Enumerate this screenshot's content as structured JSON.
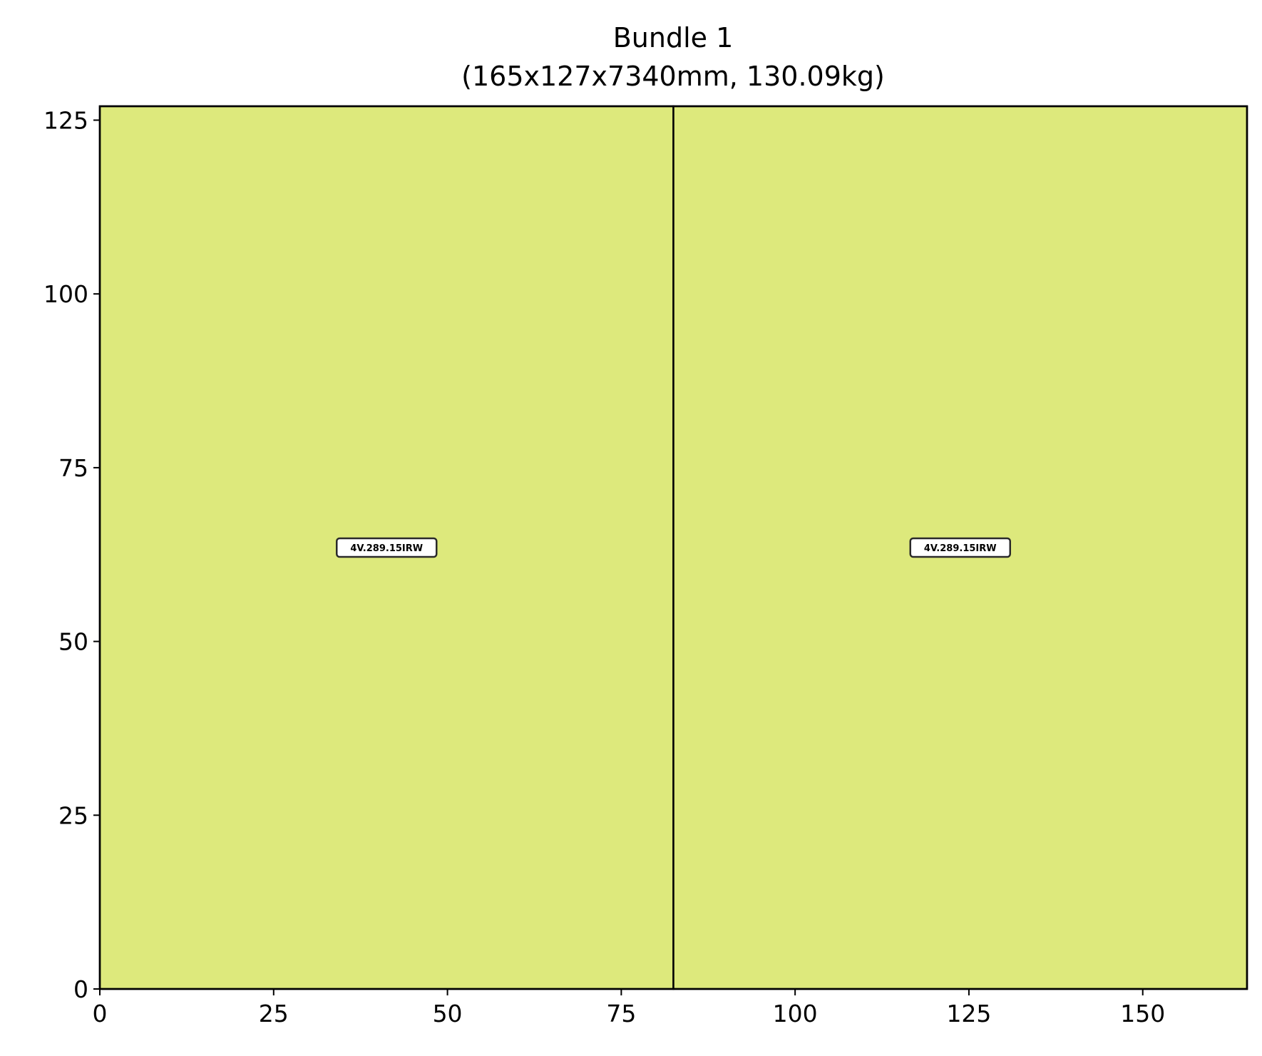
{
  "chart_data": {
    "type": "packing-layout",
    "title": "Bundle 1",
    "subtitle": "(165x127x7340mm, 130.09kg)",
    "xlabel": "",
    "ylabel": "",
    "xlim": [
      0,
      165
    ],
    "ylim": [
      0,
      127
    ],
    "x_ticks": [
      0,
      25,
      50,
      75,
      100,
      125,
      150
    ],
    "y_ticks": [
      0,
      25,
      50,
      75,
      100,
      125
    ],
    "grid": false,
    "fill_color": "#dde97c",
    "edge_color": "#000000",
    "items": [
      {
        "label": "4V.289.15IRW",
        "x": 0,
        "y": 0,
        "width": 82.5,
        "height": 127
      },
      {
        "label": "4V.289.15IRW",
        "x": 82.5,
        "y": 0,
        "width": 82.5,
        "height": 127
      }
    ]
  }
}
